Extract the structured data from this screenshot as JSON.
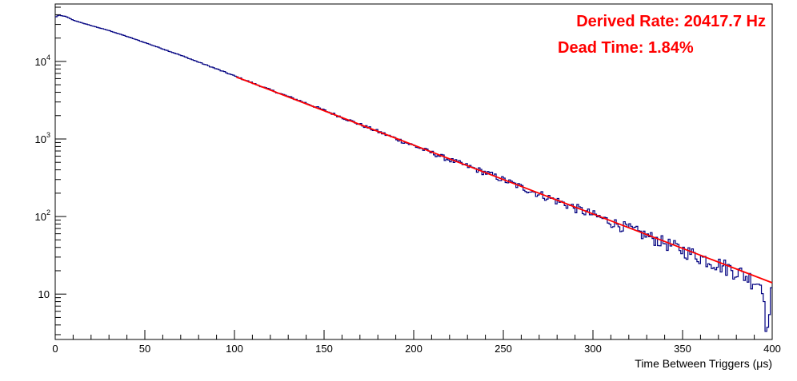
{
  "chart_data": {
    "type": "line",
    "xlabel": "Time Between Triggers (μs)",
    "ylabel": "",
    "xlim": [
      0,
      400
    ],
    "ylim": [
      2.6,
      55000
    ],
    "y_scale": "log",
    "grid": false,
    "x_ticks": [
      {
        "value": 0,
        "label": "0"
      },
      {
        "value": 50,
        "label": "50"
      },
      {
        "value": 100,
        "label": "100"
      },
      {
        "value": 150,
        "label": "150"
      },
      {
        "value": 200,
        "label": "200"
      },
      {
        "value": 250,
        "label": "250"
      },
      {
        "value": 300,
        "label": "300"
      },
      {
        "value": 350,
        "label": "350"
      },
      {
        "value": 400,
        "label": "400"
      }
    ],
    "y_ticks": [
      {
        "value": 10,
        "label": "10",
        "exp": ""
      },
      {
        "value": 100,
        "label": "10",
        "exp": "2"
      },
      {
        "value": 1000,
        "label": "10",
        "exp": "3"
      },
      {
        "value": 10000,
        "label": "10",
        "exp": "4"
      }
    ],
    "annotations": [
      {
        "text": "Derived Rate: 20417.7 Hz",
        "position": "top-right",
        "color": "#ff0000"
      },
      {
        "text": "Dead Time: 1.84%",
        "position": "top-right",
        "color": "#ff0000"
      }
    ],
    "series": [
      {
        "kind": "histogram",
        "color": "#000080",
        "x": [
          0,
          2,
          4,
          6,
          8,
          10,
          20,
          30,
          40,
          50,
          60,
          70,
          80,
          90,
          100,
          120,
          140,
          160,
          180,
          200,
          220,
          240,
          260,
          280,
          300,
          320,
          340,
          360,
          380,
          390,
          395,
          398,
          400
        ],
        "y": [
          37000,
          39500,
          38500,
          38000,
          36000,
          34000,
          29000,
          25000,
          21000,
          17500,
          14500,
          12000,
          9800,
          8000,
          6500,
          4300,
          2900,
          1900,
          1250,
          820,
          540,
          370,
          240,
          160,
          105,
          70,
          46,
          30,
          20,
          15,
          13,
          4,
          13
        ]
      },
      {
        "kind": "fit",
        "color": "#ff0000",
        "x": [
          101,
          400
        ],
        "y": [
          6300,
          14
        ]
      }
    ]
  }
}
